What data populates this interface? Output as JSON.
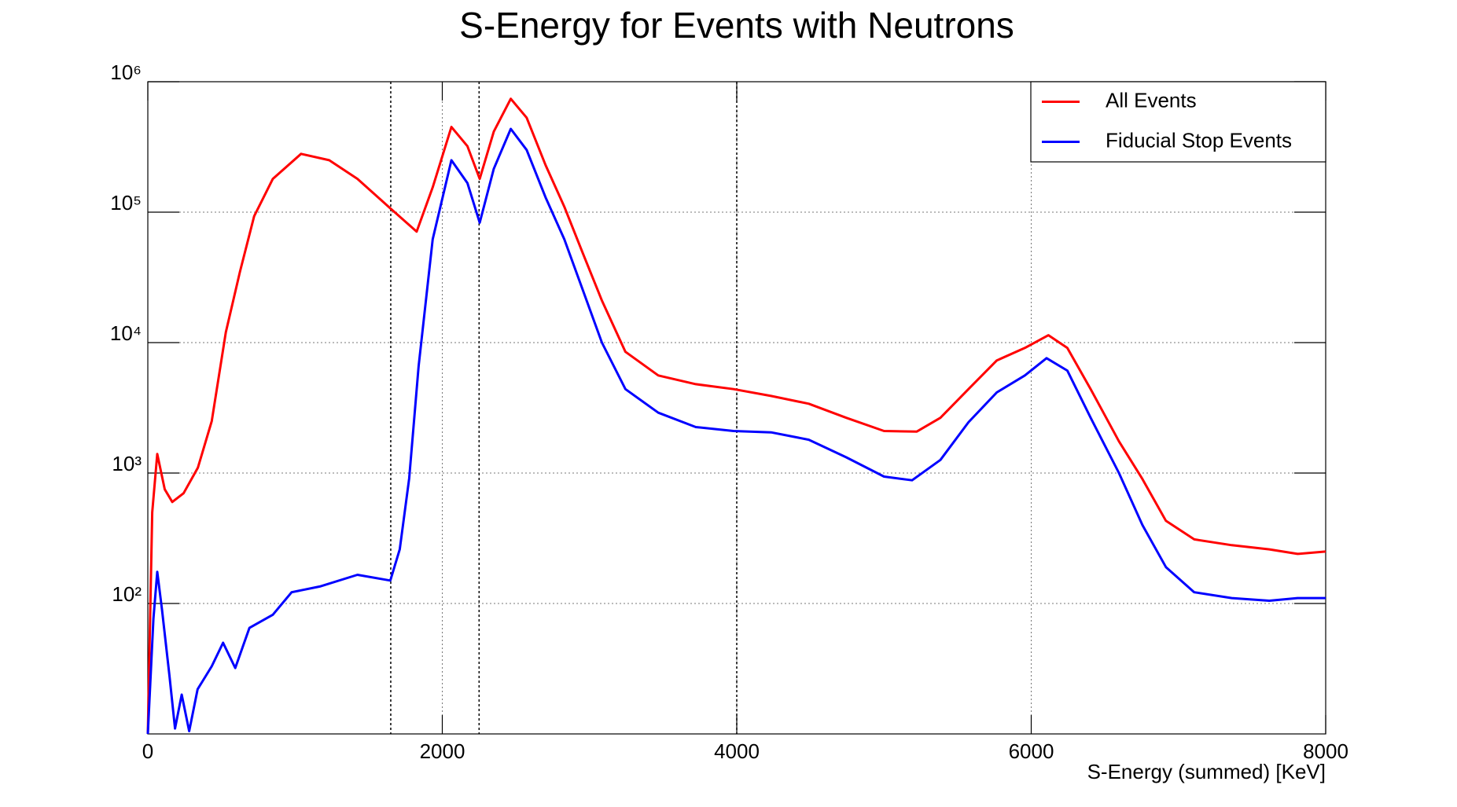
{
  "chart_data": {
    "type": "line",
    "title": "S-Energy for Events with Neutrons",
    "x_label": "S-Energy (summed) [KeV]",
    "xlim": [
      0,
      8000
    ],
    "xticks": [
      0,
      2000,
      4000,
      6000,
      8000
    ],
    "ylim": [
      10,
      1000000
    ],
    "log_y": true,
    "yticks": [
      {
        "value": 100,
        "label": "10²"
      },
      {
        "value": 1000,
        "label": "10³"
      },
      {
        "value": 10000,
        "label": "10⁴"
      },
      {
        "value": 100000,
        "label": "10⁵"
      },
      {
        "value": 1000000,
        "label": "10⁶"
      }
    ],
    "grid": true,
    "marker_lines": [
      1650,
      2250,
      4000
    ],
    "legend": "top-right",
    "series": [
      {
        "name": "All Events",
        "color": "#ff0000",
        "x": [
          0,
          30,
          64,
          115,
          166,
          243,
          340,
          434,
          530,
          626,
          722,
          849,
          1041,
          1232,
          1424,
          1647,
          1826,
          1935,
          2062,
          2171,
          2254,
          2350,
          2465,
          2573,
          2701,
          2829,
          2956,
          3084,
          3244,
          3467,
          3722,
          3978,
          4233,
          4489,
          4744,
          5000,
          5223,
          5383,
          5574,
          5766,
          5957,
          6117,
          6245,
          6404,
          6596,
          6755,
          6915,
          7107,
          7362,
          7617,
          7809,
          8000
        ],
        "values": [
          10,
          500,
          1400,
          750,
          600,
          700,
          1100,
          2500,
          12000,
          35000,
          93000,
          180000,
          280000,
          250000,
          180000,
          107000,
          71000,
          155000,
          450000,
          320000,
          180000,
          415000,
          740000,
          530000,
          230000,
          110000,
          48000,
          21000,
          8500,
          5600,
          4800,
          4400,
          3900,
          3400,
          2650,
          2100,
          2080,
          2650,
          4400,
          7300,
          9100,
          11400,
          9100,
          4400,
          1750,
          900,
          430,
          310,
          280,
          260,
          240,
          250
        ]
      },
      {
        "name": "Fiducial Stop Events",
        "color": "#0000ff",
        "x": [
          0,
          38,
          64,
          96,
          147,
          185,
          230,
          281,
          338,
          434,
          511,
          594,
          690,
          849,
          977,
          1168,
          1424,
          1647,
          1711,
          1775,
          1839,
          1935,
          2062,
          2171,
          2254,
          2350,
          2465,
          2573,
          2701,
          2829,
          2956,
          3084,
          3244,
          3467,
          3722,
          3978,
          4233,
          4489,
          4744,
          5000,
          5191,
          5383,
          5574,
          5766,
          5957,
          6104,
          6245,
          6404,
          6596,
          6755,
          6915,
          7107,
          7362,
          7617,
          7809,
          8000
        ],
        "values": [
          10,
          76,
          175,
          90,
          28,
          11,
          20,
          10.5,
          22,
          33,
          50,
          32,
          65,
          82,
          122,
          135,
          166,
          150,
          260,
          910,
          6600,
          62000,
          250000,
          167000,
          83000,
          215000,
          435000,
          300000,
          130000,
          62000,
          25000,
          10000,
          4400,
          2900,
          2250,
          2100,
          2050,
          1800,
          1320,
          940,
          880,
          1260,
          2450,
          4150,
          5600,
          7600,
          6100,
          2650,
          1000,
          400,
          190,
          122,
          110,
          105,
          110,
          110
        ]
      }
    ]
  }
}
